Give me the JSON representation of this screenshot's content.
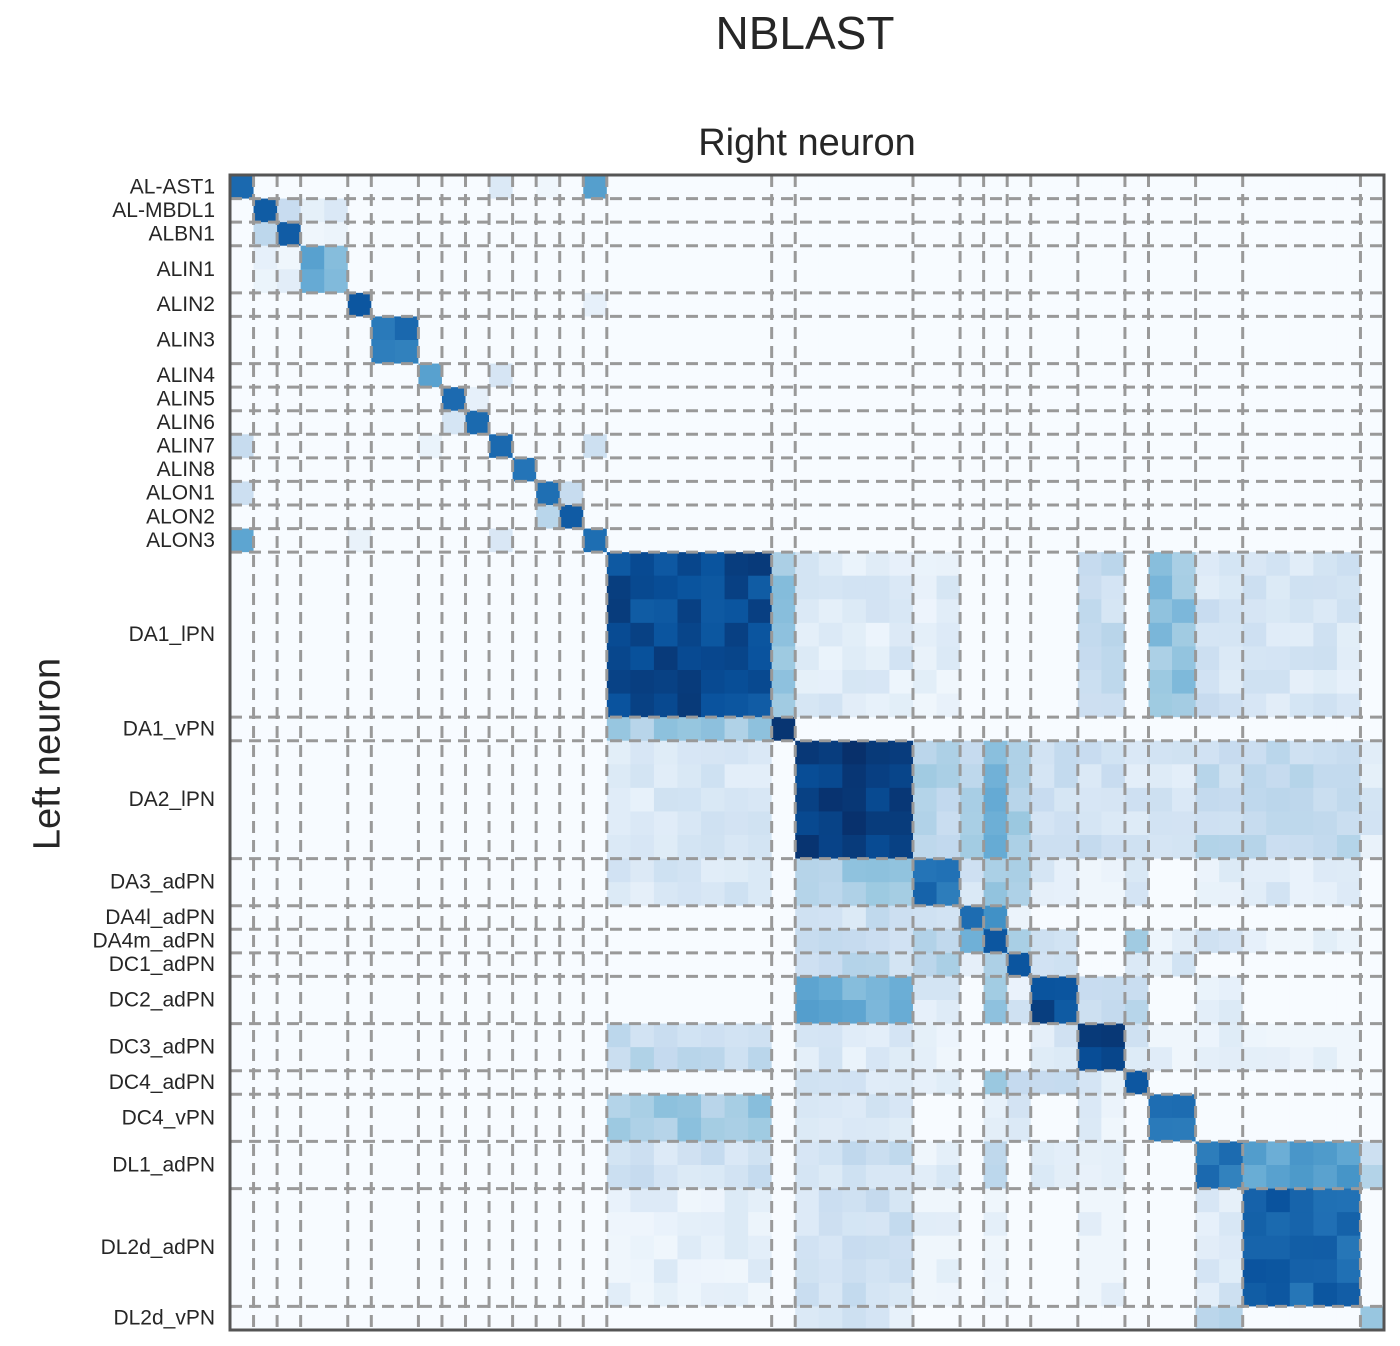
{
  "title": "NBLAST",
  "chart_data": {
    "type": "heatmap",
    "title": "NBLAST",
    "xlabel": "Right neuron",
    "ylabel": "Left neuron",
    "colormap": "Blues",
    "value_range": [
      0,
      1
    ],
    "grid_color": "#999999",
    "groups": [
      {
        "label": "AL-AST1",
        "n": 1
      },
      {
        "label": "AL-MBDL1",
        "n": 1
      },
      {
        "label": "ALBN1",
        "n": 1
      },
      {
        "label": "ALIN1",
        "n": 2
      },
      {
        "label": "ALIN2",
        "n": 1
      },
      {
        "label": "ALIN3",
        "n": 2
      },
      {
        "label": "ALIN4",
        "n": 1
      },
      {
        "label": "ALIN5",
        "n": 1
      },
      {
        "label": "ALIN6",
        "n": 1
      },
      {
        "label": "ALIN7",
        "n": 1
      },
      {
        "label": "ALIN8",
        "n": 1
      },
      {
        "label": "ALON1",
        "n": 1
      },
      {
        "label": "ALON2",
        "n": 1
      },
      {
        "label": "ALON3",
        "n": 1
      },
      {
        "label": "DA1_lPN",
        "n": 7
      },
      {
        "label": "DA1_vPN",
        "n": 1
      },
      {
        "label": "DA2_lPN",
        "n": 5
      },
      {
        "label": "DA3_adPN",
        "n": 2
      },
      {
        "label": "DA4l_adPN",
        "n": 1
      },
      {
        "label": "DA4m_adPN",
        "n": 1
      },
      {
        "label": "DC1_adPN",
        "n": 1
      },
      {
        "label": "DC2_adPN",
        "n": 2
      },
      {
        "label": "DC3_adPN",
        "n": 2
      },
      {
        "label": "DC4_adPN",
        "n": 1
      },
      {
        "label": "DC4_vPN",
        "n": 2
      },
      {
        "label": "DL1_adPN",
        "n": 2
      },
      {
        "label": "DL2d_adPN",
        "n": 5
      },
      {
        "label": "DL2d_vPN",
        "n": 1
      }
    ],
    "group_similarity": [
      [
        0,
        0,
        "0.85"
      ],
      [
        0,
        9,
        "0.1"
      ],
      [
        0,
        11,
        "0.05"
      ],
      [
        0,
        13,
        "0.55"
      ],
      [
        1,
        1,
        "0.8"
      ],
      [
        1,
        2,
        "0.3"
      ],
      [
        1,
        3,
        "0.1"
      ],
      [
        2,
        2,
        "0.85"
      ],
      [
        2,
        3,
        "0.05"
      ],
      [
        3,
        3,
        "0.5"
      ],
      [
        4,
        4,
        "0.9"
      ],
      [
        4,
        13,
        "0.05"
      ],
      [
        5,
        5,
        "0.75"
      ],
      [
        6,
        6,
        "0.55"
      ],
      [
        6,
        9,
        "0.1"
      ],
      [
        7,
        7,
        "0.8"
      ],
      [
        7,
        8,
        "0.15"
      ],
      [
        8,
        8,
        "0.8"
      ],
      [
        9,
        9,
        "0.8"
      ],
      [
        9,
        13,
        "0.2"
      ],
      [
        9,
        0,
        "0.2"
      ],
      [
        9,
        6,
        "0.1"
      ],
      [
        10,
        10,
        "0.8"
      ],
      [
        11,
        11,
        "0.8"
      ],
      [
        11,
        12,
        "0.3"
      ],
      [
        11,
        0,
        "0.15"
      ],
      [
        12,
        12,
        "0.9"
      ],
      [
        13,
        13,
        "0.7"
      ],
      [
        13,
        0,
        "0.55"
      ],
      [
        13,
        9,
        "0.1"
      ],
      [
        14,
        14,
        "0.9"
      ],
      [
        14,
        15,
        "0.4"
      ],
      [
        14,
        16,
        "0.12"
      ],
      [
        14,
        17,
        "0.1"
      ],
      [
        14,
        24,
        "0.4"
      ],
      [
        14,
        26,
        "0.15"
      ],
      [
        15,
        15,
        "1.0"
      ],
      [
        15,
        14,
        "0.35"
      ],
      [
        16,
        16,
        "0.95"
      ],
      [
        16,
        14,
        "0.15"
      ],
      [
        16,
        17,
        "0.3"
      ],
      [
        16,
        18,
        "0.3"
      ],
      [
        16,
        19,
        "0.45"
      ],
      [
        16,
        20,
        "0.35"
      ],
      [
        16,
        21,
        "0.2"
      ],
      [
        16,
        22,
        "0.2"
      ],
      [
        16,
        23,
        "0.15"
      ],
      [
        16,
        24,
        "0.15"
      ],
      [
        16,
        25,
        "0.25"
      ],
      [
        16,
        26,
        "0.25"
      ],
      [
        17,
        17,
        "0.75"
      ],
      [
        17,
        14,
        "0.15"
      ],
      [
        17,
        16,
        "0.35"
      ],
      [
        17,
        19,
        "0.4"
      ],
      [
        17,
        21,
        "0.15"
      ],
      [
        17,
        26,
        "0.12"
      ],
      [
        18,
        18,
        "0.75"
      ],
      [
        18,
        16,
        "0.2"
      ],
      [
        18,
        17,
        "0.2"
      ],
      [
        18,
        19,
        "0.6"
      ],
      [
        18,
        20,
        "0.1"
      ],
      [
        19,
        19,
        "0.85"
      ],
      [
        19,
        16,
        "0.25"
      ],
      [
        19,
        17,
        "0.25"
      ],
      [
        19,
        20,
        "0.3"
      ],
      [
        19,
        21,
        "0.15"
      ],
      [
        19,
        25,
        "0.2"
      ],
      [
        20,
        20,
        "0.85"
      ],
      [
        20,
        16,
        "0.25"
      ],
      [
        20,
        17,
        "0.3"
      ],
      [
        20,
        19,
        "0.3"
      ],
      [
        20,
        21,
        "0.15"
      ],
      [
        21,
        21,
        "0.9"
      ],
      [
        21,
        16,
        "0.5"
      ],
      [
        21,
        17,
        "0.15"
      ],
      [
        21,
        19,
        "0.4"
      ],
      [
        21,
        22,
        "0.25"
      ],
      [
        21,
        23,
        "0.3"
      ],
      [
        21,
        25,
        "0.08"
      ],
      [
        22,
        22,
        "0.95"
      ],
      [
        22,
        14,
        "0.25"
      ],
      [
        22,
        16,
        "0.12"
      ],
      [
        22,
        17,
        "0.08"
      ],
      [
        22,
        21,
        "0.15"
      ],
      [
        22,
        26,
        "0.05"
      ],
      [
        23,
        23,
        "0.8"
      ],
      [
        23,
        16,
        "0.15"
      ],
      [
        23,
        17,
        "0.15"
      ],
      [
        23,
        19,
        "0.45"
      ],
      [
        23,
        20,
        "0.2"
      ],
      [
        23,
        22,
        "0.15"
      ],
      [
        24,
        24,
        "0.7"
      ],
      [
        24,
        19,
        "0.1"
      ],
      [
        24,
        20,
        "0.15"
      ],
      [
        24,
        22,
        "0.08"
      ],
      [
        25,
        25,
        "0.75"
      ],
      [
        25,
        14,
        "0.2"
      ],
      [
        25,
        16,
        "0.2"
      ],
      [
        25,
        17,
        "0.1"
      ],
      [
        25,
        19,
        "0.25"
      ],
      [
        25,
        21,
        "0.08"
      ],
      [
        25,
        22,
        "0.1"
      ],
      [
        25,
        26,
        "0.55"
      ],
      [
        26,
        26,
        "0.8"
      ],
      [
        26,
        14,
        "0.08"
      ],
      [
        26,
        16,
        "0.2"
      ],
      [
        26,
        17,
        "0.05"
      ],
      [
        26,
        19,
        "0.05"
      ],
      [
        26,
        25,
        "0.15"
      ],
      [
        27,
        27,
        "0.4"
      ],
      [
        27,
        16,
        "0.15"
      ],
      [
        27,
        25,
        "0.3"
      ]
    ]
  }
}
